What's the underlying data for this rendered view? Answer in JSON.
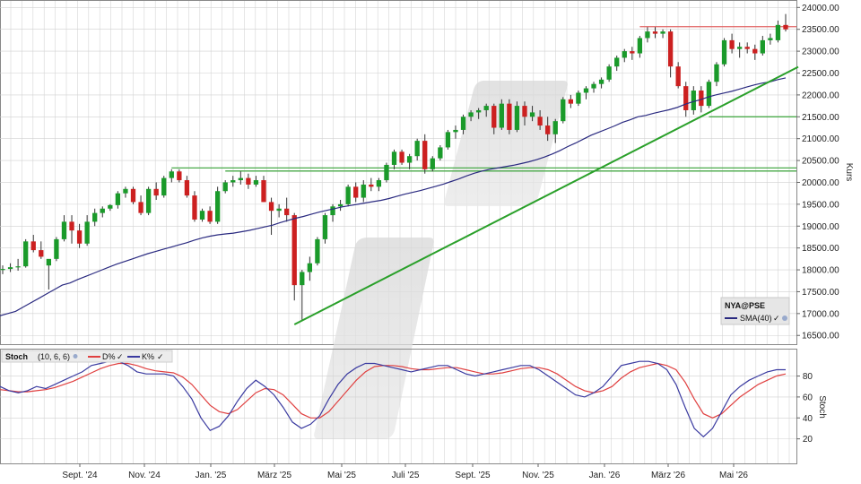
{
  "chart_data": [
    {
      "type": "candlestick",
      "ylabel": "Kurs",
      "ylim": [
        16300,
        24150
      ],
      "y_ticks": [
        "16500.00",
        "17000.00",
        "17500.00",
        "18000.00",
        "18500.00",
        "19000.00",
        "19500.00",
        "20000.00",
        "20500.00",
        "21000.00",
        "21500.00",
        "22000.00",
        "22500.00",
        "23000.00",
        "23500.00",
        "24000.00"
      ],
      "x_ticks": [
        "Sept. '24",
        "Nov. '24",
        "Jan. '25",
        "März '25",
        "Mai '25",
        "Juli '25",
        "Sept. '25",
        "Nov. '25",
        "Jan. '26",
        "März '26",
        "Mai '26"
      ],
      "legend": {
        "symbol": "NYA@PSE",
        "sma_label": "SMA(40)"
      },
      "colors": {
        "up": "#1a9a2a",
        "down": "#cc2020",
        "sma": "#2a2a80",
        "trend": "#2aa02a",
        "resistance": "#e06060",
        "support": "#4aaa4a"
      },
      "candles": [
        {
          "o": 18000,
          "h": 18100,
          "l": 17900,
          "c": 18020
        },
        {
          "o": 18020,
          "h": 18150,
          "l": 17950,
          "c": 18060
        },
        {
          "o": 18060,
          "h": 18250,
          "l": 17980,
          "c": 18080
        },
        {
          "o": 18080,
          "h": 18700,
          "l": 18050,
          "c": 18650
        },
        {
          "o": 18650,
          "h": 18800,
          "l": 18400,
          "c": 18450
        },
        {
          "o": 18450,
          "h": 18650,
          "l": 18250,
          "c": 18300
        },
        {
          "o": 18100,
          "h": 18200,
          "l": 17550,
          "c": 18250
        },
        {
          "o": 18250,
          "h": 18750,
          "l": 18200,
          "c": 18700
        },
        {
          "o": 18700,
          "h": 19250,
          "l": 18650,
          "c": 19100
        },
        {
          "o": 19100,
          "h": 19250,
          "l": 18600,
          "c": 18900
        },
        {
          "o": 18900,
          "h": 19050,
          "l": 18500,
          "c": 18600
        },
        {
          "o": 18600,
          "h": 19250,
          "l": 18550,
          "c": 19100
        },
        {
          "o": 19100,
          "h": 19400,
          "l": 19000,
          "c": 19300
        },
        {
          "o": 19300,
          "h": 19450,
          "l": 19200,
          "c": 19400
        },
        {
          "o": 19400,
          "h": 19500,
          "l": 19350,
          "c": 19480
        },
        {
          "o": 19480,
          "h": 19800,
          "l": 19400,
          "c": 19750
        },
        {
          "o": 19750,
          "h": 19900,
          "l": 19650,
          "c": 19850
        },
        {
          "o": 19850,
          "h": 19900,
          "l": 19500,
          "c": 19550
        },
        {
          "o": 19550,
          "h": 19700,
          "l": 19250,
          "c": 19300
        },
        {
          "o": 19300,
          "h": 19900,
          "l": 19250,
          "c": 19850
        },
        {
          "o": 19850,
          "h": 20000,
          "l": 19600,
          "c": 19700
        },
        {
          "o": 19700,
          "h": 20150,
          "l": 19650,
          "c": 20100
        },
        {
          "o": 20100,
          "h": 20300,
          "l": 20000,
          "c": 20250
        },
        {
          "o": 20250,
          "h": 20300,
          "l": 20000,
          "c": 20050
        },
        {
          "o": 20050,
          "h": 20150,
          "l": 19650,
          "c": 19700
        },
        {
          "o": 19700,
          "h": 19800,
          "l": 19100,
          "c": 19150
        },
        {
          "o": 19150,
          "h": 19400,
          "l": 19100,
          "c": 19350
        },
        {
          "o": 19350,
          "h": 19450,
          "l": 19050,
          "c": 19100
        },
        {
          "o": 19100,
          "h": 19900,
          "l": 19050,
          "c": 19800
        },
        {
          "o": 19800,
          "h": 20050,
          "l": 19750,
          "c": 20000
        },
        {
          "o": 20000,
          "h": 20150,
          "l": 19900,
          "c": 20050
        },
        {
          "o": 20050,
          "h": 20250,
          "l": 19950,
          "c": 20100
        },
        {
          "o": 20100,
          "h": 20200,
          "l": 19850,
          "c": 19950
        },
        {
          "o": 19950,
          "h": 20150,
          "l": 19900,
          "c": 20050
        },
        {
          "o": 20050,
          "h": 20150,
          "l": 19550,
          "c": 19550
        },
        {
          "o": 19550,
          "h": 19650,
          "l": 18800,
          "c": 19350
        },
        {
          "o": 19350,
          "h": 19500,
          "l": 19200,
          "c": 19400
        },
        {
          "o": 19400,
          "h": 19650,
          "l": 19100,
          "c": 19250
        },
        {
          "o": 19250,
          "h": 19300,
          "l": 17300,
          "c": 17650
        },
        {
          "o": 17650,
          "h": 18000,
          "l": 16850,
          "c": 17950
        },
        {
          "o": 17950,
          "h": 18300,
          "l": 17750,
          "c": 18150
        },
        {
          "o": 18150,
          "h": 18750,
          "l": 18100,
          "c": 18700
        },
        {
          "o": 18700,
          "h": 19300,
          "l": 18600,
          "c": 19250
        },
        {
          "o": 19250,
          "h": 19500,
          "l": 19100,
          "c": 19450
        },
        {
          "o": 19450,
          "h": 19600,
          "l": 19350,
          "c": 19500
        },
        {
          "o": 19500,
          "h": 19950,
          "l": 19450,
          "c": 19900
        },
        {
          "o": 19900,
          "h": 20000,
          "l": 19550,
          "c": 19650
        },
        {
          "o": 19650,
          "h": 20050,
          "l": 19550,
          "c": 19950
        },
        {
          "o": 19950,
          "h": 20100,
          "l": 19800,
          "c": 19900
        },
        {
          "o": 19900,
          "h": 20100,
          "l": 19800,
          "c": 20050
        },
        {
          "o": 20050,
          "h": 20450,
          "l": 20000,
          "c": 20400
        },
        {
          "o": 20400,
          "h": 20750,
          "l": 20300,
          "c": 20700
        },
        {
          "o": 20700,
          "h": 20750,
          "l": 20400,
          "c": 20450
        },
        {
          "o": 20450,
          "h": 20650,
          "l": 20300,
          "c": 20600
        },
        {
          "o": 20600,
          "h": 21000,
          "l": 20500,
          "c": 20950
        },
        {
          "o": 20950,
          "h": 21100,
          "l": 20200,
          "c": 20300
        },
        {
          "o": 20300,
          "h": 20600,
          "l": 20250,
          "c": 20550
        },
        {
          "o": 20550,
          "h": 20850,
          "l": 20500,
          "c": 20800
        },
        {
          "o": 20800,
          "h": 21200,
          "l": 20750,
          "c": 21150
        },
        {
          "o": 21150,
          "h": 21300,
          "l": 21000,
          "c": 21200
        },
        {
          "o": 21200,
          "h": 21550,
          "l": 21100,
          "c": 21500
        },
        {
          "o": 21500,
          "h": 21650,
          "l": 21400,
          "c": 21600
        },
        {
          "o": 21600,
          "h": 21700,
          "l": 21450,
          "c": 21650
        },
        {
          "o": 21650,
          "h": 21800,
          "l": 21500,
          "c": 21750
        },
        {
          "o": 21750,
          "h": 21800,
          "l": 21100,
          "c": 21250
        },
        {
          "o": 21250,
          "h": 21900,
          "l": 21200,
          "c": 21800
        },
        {
          "o": 21800,
          "h": 21900,
          "l": 21100,
          "c": 21200
        },
        {
          "o": 21200,
          "h": 21850,
          "l": 21150,
          "c": 21750
        },
        {
          "o": 21750,
          "h": 21850,
          "l": 21300,
          "c": 21500
        },
        {
          "o": 21500,
          "h": 21750,
          "l": 21400,
          "c": 21600
        },
        {
          "o": 21500,
          "h": 21650,
          "l": 21200,
          "c": 21300
        },
        {
          "o": 21300,
          "h": 21500,
          "l": 20950,
          "c": 21100
        },
        {
          "o": 21100,
          "h": 21450,
          "l": 20900,
          "c": 21400
        },
        {
          "o": 21400,
          "h": 21950,
          "l": 21350,
          "c": 21900
        },
        {
          "o": 21900,
          "h": 22000,
          "l": 21700,
          "c": 21800
        },
        {
          "o": 21800,
          "h": 22100,
          "l": 21750,
          "c": 22050
        },
        {
          "o": 22050,
          "h": 22200,
          "l": 21900,
          "c": 22150
        },
        {
          "o": 22150,
          "h": 22300,
          "l": 22050,
          "c": 22250
        },
        {
          "o": 22250,
          "h": 22400,
          "l": 22150,
          "c": 22350
        },
        {
          "o": 22350,
          "h": 22700,
          "l": 22300,
          "c": 22650
        },
        {
          "o": 22650,
          "h": 22900,
          "l": 22550,
          "c": 22850
        },
        {
          "o": 22850,
          "h": 23050,
          "l": 22750,
          "c": 23000
        },
        {
          "o": 23000,
          "h": 23100,
          "l": 22800,
          "c": 22950
        },
        {
          "o": 22950,
          "h": 23350,
          "l": 22850,
          "c": 23300
        },
        {
          "o": 23300,
          "h": 23550,
          "l": 23200,
          "c": 23450
        },
        {
          "o": 23450,
          "h": 23550,
          "l": 23300,
          "c": 23400
        },
        {
          "o": 23400,
          "h": 23500,
          "l": 23300,
          "c": 23450
        },
        {
          "o": 23450,
          "h": 23500,
          "l": 22400,
          "c": 22650
        },
        {
          "o": 22650,
          "h": 22750,
          "l": 22150,
          "c": 22200
        },
        {
          "o": 22200,
          "h": 22300,
          "l": 21500,
          "c": 21650
        },
        {
          "o": 21650,
          "h": 22200,
          "l": 21550,
          "c": 22100
        },
        {
          "o": 22100,
          "h": 22200,
          "l": 21600,
          "c": 21750
        },
        {
          "o": 21750,
          "h": 22350,
          "l": 21700,
          "c": 22300
        },
        {
          "o": 22300,
          "h": 22750,
          "l": 22200,
          "c": 22700
        },
        {
          "o": 22700,
          "h": 23300,
          "l": 22650,
          "c": 23250
        },
        {
          "o": 23250,
          "h": 23400,
          "l": 22950,
          "c": 23050
        },
        {
          "o": 23050,
          "h": 23200,
          "l": 22850,
          "c": 23100
        },
        {
          "o": 23100,
          "h": 23200,
          "l": 22950,
          "c": 23050
        },
        {
          "o": 23050,
          "h": 23150,
          "l": 22800,
          "c": 22950
        },
        {
          "o": 22950,
          "h": 23350,
          "l": 22900,
          "c": 23250
        },
        {
          "o": 23250,
          "h": 23400,
          "l": 23150,
          "c": 23300
        },
        {
          "o": 23250,
          "h": 23700,
          "l": 23200,
          "c": 23600
        },
        {
          "o": 23600,
          "h": 23850,
          "l": 23450,
          "c": 23500
        }
      ],
      "sma": [
        16950,
        17000,
        17050,
        17150,
        17250,
        17350,
        17450,
        17550,
        17650,
        17700,
        17780,
        17850,
        17920,
        17990,
        18060,
        18130,
        18190,
        18250,
        18310,
        18370,
        18420,
        18470,
        18520,
        18570,
        18620,
        18680,
        18730,
        18770,
        18800,
        18820,
        18840,
        18870,
        18900,
        18940,
        18980,
        19020,
        19080,
        19130,
        19180,
        19220,
        19270,
        19320,
        19360,
        19400,
        19440,
        19470,
        19500,
        19530,
        19560,
        19590,
        19630,
        19680,
        19730,
        19770,
        19810,
        19860,
        19910,
        19960,
        20020,
        20080,
        20150,
        20210,
        20260,
        20300,
        20330,
        20360,
        20390,
        20430,
        20470,
        20520,
        20580,
        20650,
        20730,
        20820,
        20900,
        20990,
        21080,
        21150,
        21220,
        21290,
        21370,
        21430,
        21500,
        21530,
        21580,
        21620,
        21660,
        21710,
        21780,
        21840,
        21890,
        21950,
        22000,
        22040,
        22080,
        22130,
        22180,
        22230,
        22270,
        22300,
        22350,
        22390
      ],
      "trendline": {
        "from": {
          "bar": 38,
          "y": 16750
        },
        "to": {
          "bar": 102,
          "y": 22600
        }
      },
      "hlines": [
        {
          "y": 23560,
          "from_bar": 83,
          "role": "resistance"
        },
        {
          "y": 21500,
          "from_bar": 92,
          "role": "support"
        },
        {
          "y": 20330,
          "from_bar": 22,
          "role": "support"
        },
        {
          "y": 20260,
          "from_bar": 29,
          "role": "support"
        }
      ]
    },
    {
      "type": "line",
      "ylabel": "Stoch",
      "ylim": [
        0,
        100
      ],
      "y_ticks": [
        "20",
        "40",
        "60",
        "80"
      ],
      "legend": {
        "title": "Stoch",
        "params": "(10, 6, 6)",
        "d_label": "D%",
        "k_label": "K%"
      },
      "colors": {
        "d": "#e04040",
        "k": "#3a3aa0"
      },
      "k_values": [
        70,
        66,
        64,
        66,
        70,
        68,
        72,
        76,
        80,
        84,
        90,
        92,
        94,
        94,
        90,
        84,
        82,
        82,
        82,
        80,
        70,
        58,
        40,
        28,
        32,
        42,
        56,
        68,
        76,
        70,
        62,
        50,
        36,
        30,
        34,
        42,
        58,
        72,
        82,
        88,
        92,
        92,
        90,
        88,
        86,
        84,
        86,
        88,
        90,
        90,
        86,
        82,
        80,
        82,
        84,
        86,
        88,
        90,
        90,
        86,
        80,
        74,
        68,
        62,
        60,
        64,
        70,
        80,
        90,
        92,
        94,
        94,
        92,
        86,
        72,
        50,
        30,
        22,
        30,
        46,
        62,
        70,
        76,
        80,
        84,
        86,
        86
      ],
      "d_values": [
        67,
        66,
        65,
        65,
        66,
        67,
        69,
        72,
        75,
        79,
        83,
        87,
        90,
        92,
        92,
        90,
        87,
        85,
        84,
        83,
        79,
        72,
        62,
        52,
        46,
        44,
        48,
        56,
        64,
        68,
        67,
        62,
        53,
        44,
        40,
        40,
        46,
        56,
        66,
        76,
        84,
        89,
        90,
        90,
        89,
        87,
        86,
        86,
        87,
        88,
        88,
        86,
        84,
        82,
        82,
        83,
        85,
        87,
        88,
        88,
        86,
        82,
        76,
        70,
        66,
        64,
        66,
        70,
        78,
        84,
        88,
        90,
        92,
        90,
        86,
        74,
        58,
        44,
        40,
        44,
        52,
        60,
        66,
        72,
        76,
        80,
        82
      ]
    }
  ]
}
